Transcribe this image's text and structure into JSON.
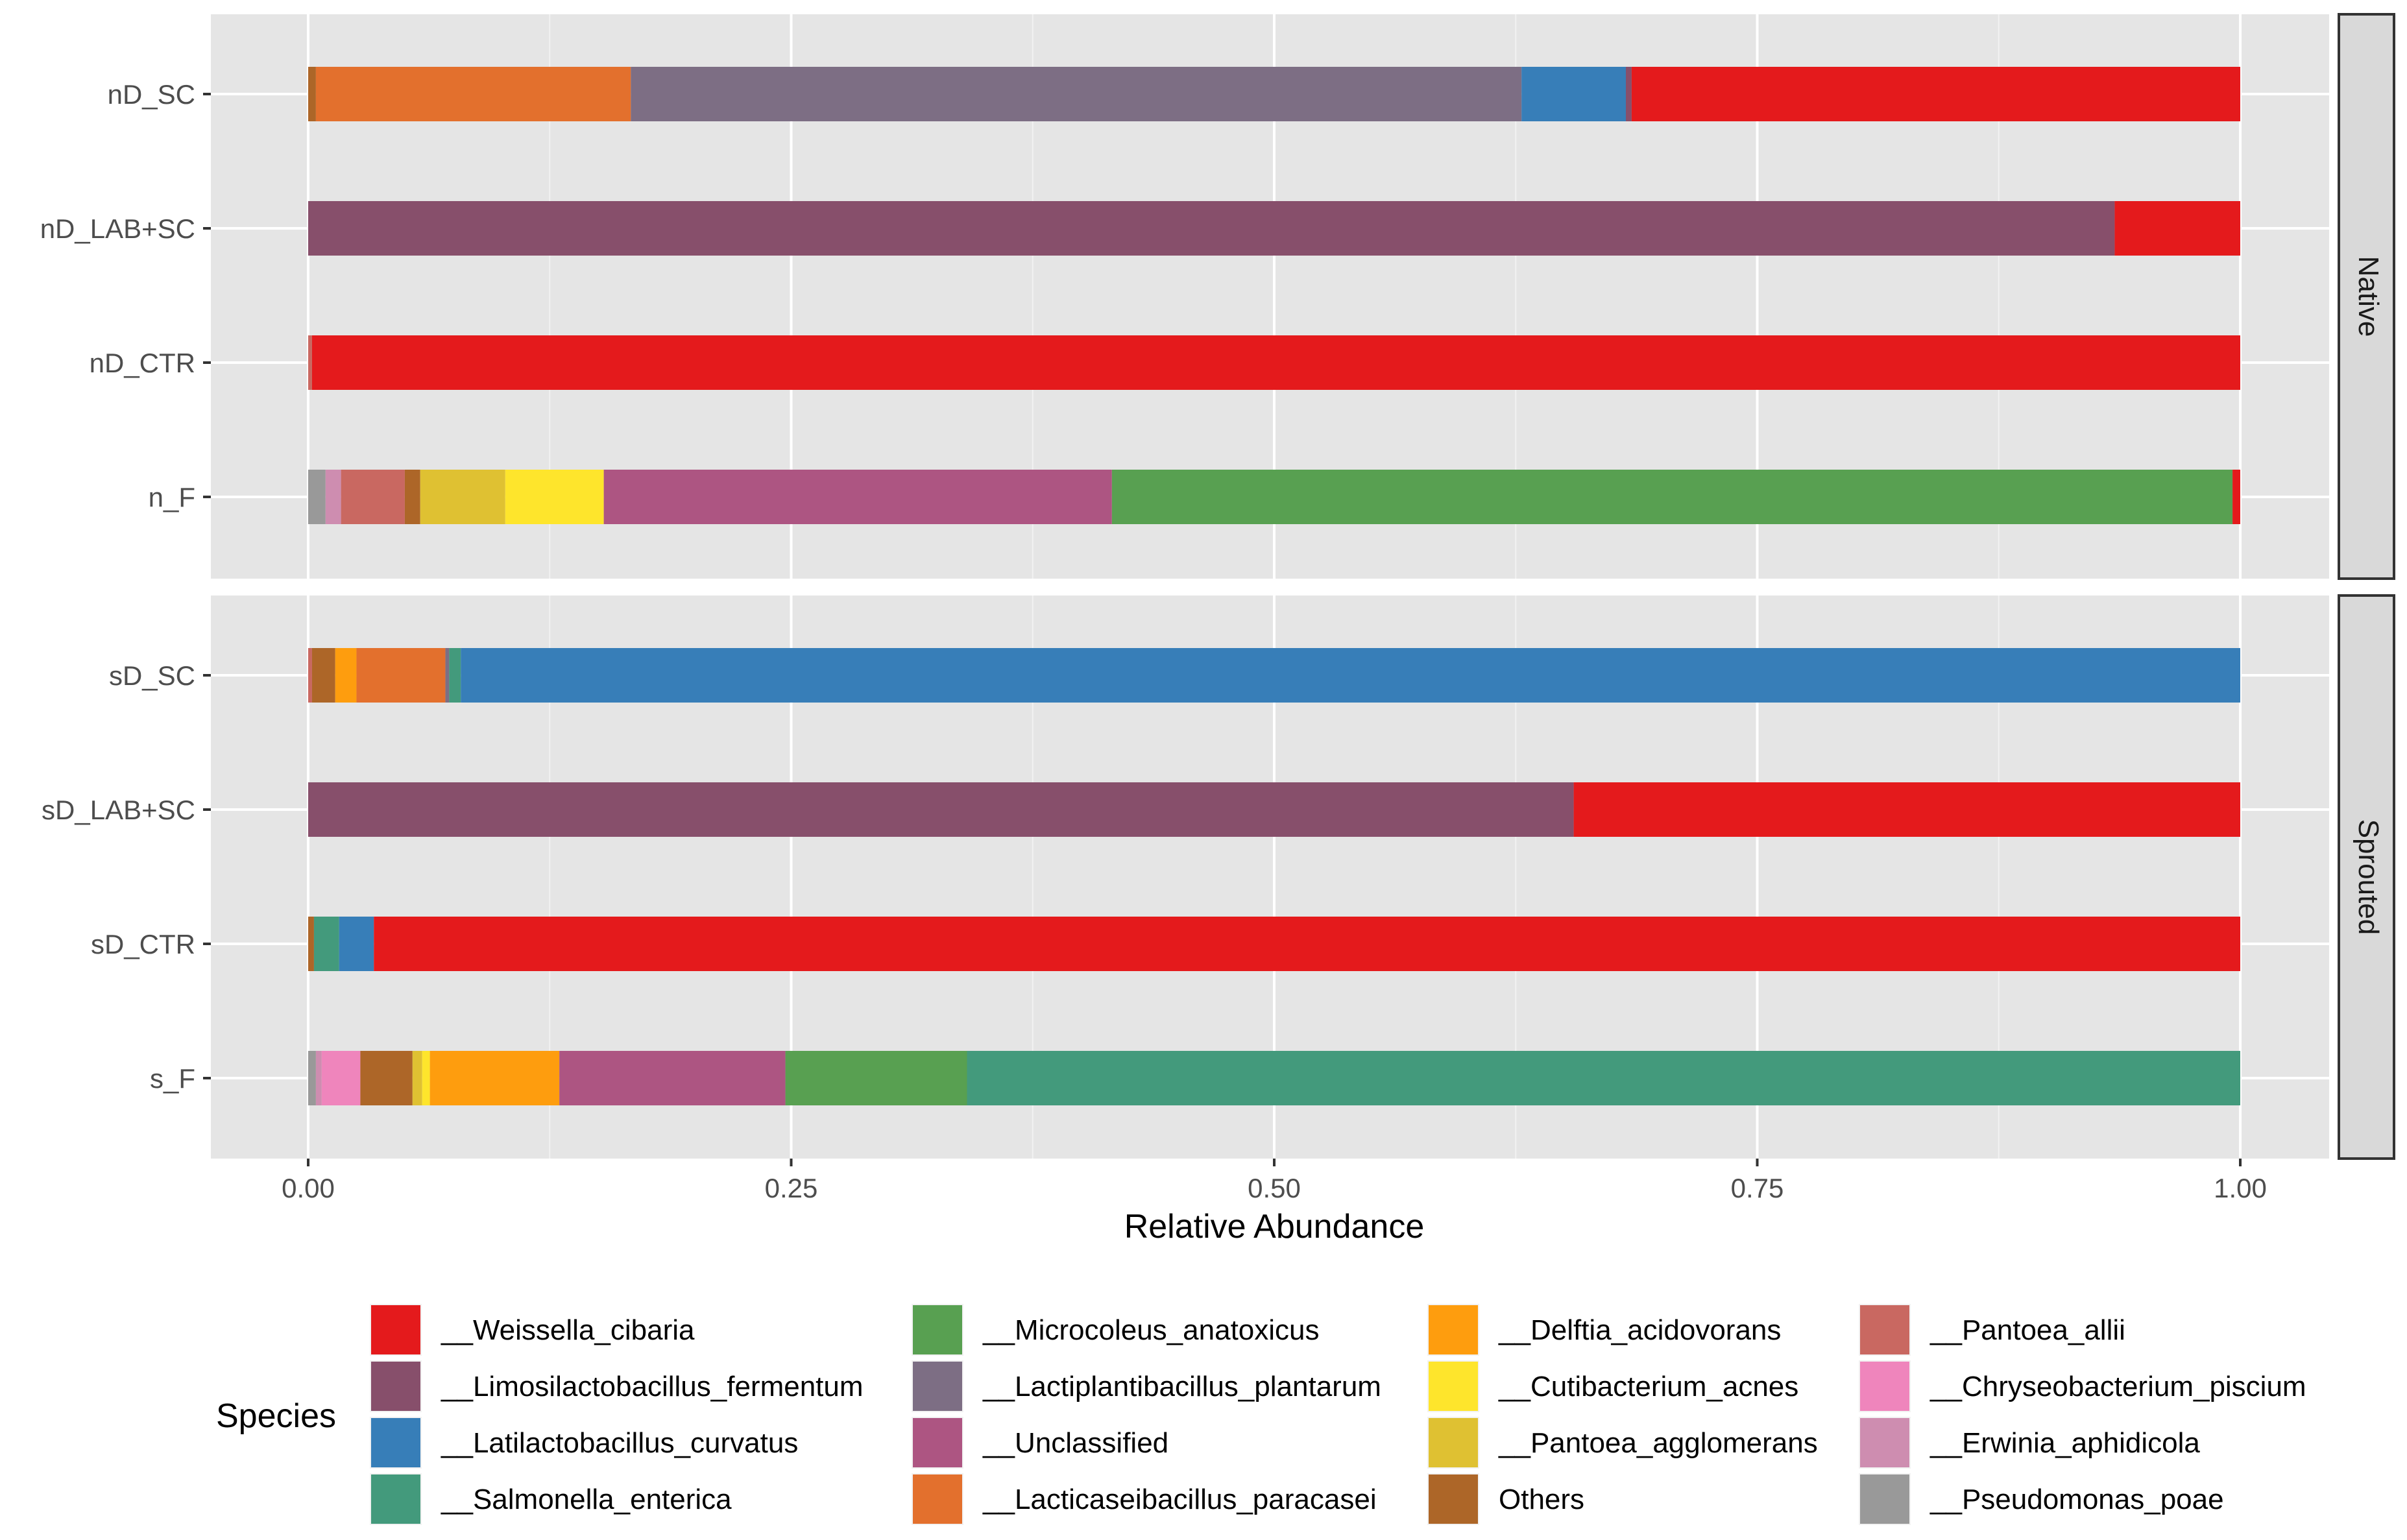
{
  "chart_data": {
    "type": "bar",
    "orientation": "horizontal",
    "stacked": true,
    "xlabel": "Relative Abundance",
    "ylabel": "",
    "xlim": [
      0,
      1
    ],
    "xticks": [
      "0.00",
      "0.25",
      "0.50",
      "0.75",
      "1.00"
    ],
    "xtick_values": [
      0,
      0.25,
      0.5,
      0.75,
      1.0
    ],
    "legend_title": "Species",
    "legend_position": "bottom",
    "species": [
      {
        "name": "__Weissella_cibaria",
        "color": "#e41a1c"
      },
      {
        "name": "__Limosilactobacillus_fermentum",
        "color": "#874f6b"
      },
      {
        "name": "__Latilactobacillus_curvatus",
        "color": "#377eb8"
      },
      {
        "name": "__Salmonella_enterica",
        "color": "#439a7c"
      },
      {
        "name": "__Microcoleus_anatoxicus",
        "color": "#58a051"
      },
      {
        "name": "__Lactiplantibacillus_plantarum",
        "color": "#7d6e84"
      },
      {
        "name": "Unclassified",
        "display": "__Unclassified",
        "color": "#ad5582"
      },
      {
        "name": "__Lacticaseibacillus_paracasei",
        "color": "#e3702d"
      },
      {
        "name": "__Delftia_acidovorans",
        "color": "#fe9d0e"
      },
      {
        "name": "__Cutibacterium_acnes",
        "color": "#fee52c"
      },
      {
        "name": "__Pantoea_agglomerans",
        "color": "#dfc132"
      },
      {
        "name": "Others",
        "display": "Others",
        "color": "#ad6628"
      },
      {
        "name": "__Pantoea_allii",
        "color": "#c96861"
      },
      {
        "name": "__Chryseobacterium_piscium",
        "color": "#ef85bc"
      },
      {
        "name": "__Erwinia_aphidicola",
        "color": "#ce8db0"
      },
      {
        "name": "__Pseudomonas_poae",
        "color": "#999999"
      }
    ],
    "panels": [
      {
        "strip": "Native",
        "categories": [
          "nD_SC",
          "nD_LAB+SC",
          "nD_CTR",
          "n_F"
        ],
        "bars": [
          {
            "category": "nD_SC",
            "segments": [
              {
                "species": "Others",
                "value": 0.004
              },
              {
                "species": "__Lacticaseibacillus_paracasei",
                "value": 0.163
              },
              {
                "species": "__Lactiplantibacillus_plantarum",
                "value": 0.461
              },
              {
                "species": "__Latilactobacillus_curvatus",
                "value": 0.054
              },
              {
                "species": "__Limosilactobacillus_fermentum",
                "value": 0.003
              },
              {
                "species": "__Weissella_cibaria",
                "value": 0.315
              }
            ]
          },
          {
            "category": "nD_LAB+SC",
            "segments": [
              {
                "species": "__Limosilactobacillus_fermentum",
                "value": 0.935
              },
              {
                "species": "__Weissella_cibaria",
                "value": 0.065
              }
            ]
          },
          {
            "category": "nD_CTR",
            "segments": [
              {
                "species": "__Pantoea_allii",
                "value": 0.002
              },
              {
                "species": "__Weissella_cibaria",
                "value": 0.998
              }
            ]
          },
          {
            "category": "n_F",
            "segments": [
              {
                "species": "__Pseudomonas_poae",
                "value": 0.009
              },
              {
                "species": "__Erwinia_aphidicola",
                "value": 0.008
              },
              {
                "species": "__Pantoea_allii",
                "value": 0.033
              },
              {
                "species": "Others",
                "value": 0.008
              },
              {
                "species": "__Pantoea_agglomerans",
                "value": 0.044
              },
              {
                "species": "__Cutibacterium_acnes",
                "value": 0.051
              },
              {
                "species": "Unclassified",
                "value": 0.263
              },
              {
                "species": "__Microcoleus_anatoxicus",
                "value": 0.58
              },
              {
                "species": "__Weissella_cibaria",
                "value": 0.004
              }
            ]
          }
        ]
      },
      {
        "strip": "Sprouted",
        "categories": [
          "sD_SC",
          "sD_LAB+SC",
          "sD_CTR",
          "s_F"
        ],
        "bars": [
          {
            "category": "sD_SC",
            "segments": [
              {
                "species": "__Pantoea_allii",
                "value": 0.002
              },
              {
                "species": "Others",
                "value": 0.012
              },
              {
                "species": "__Delftia_acidovorans",
                "value": 0.011
              },
              {
                "species": "__Lacticaseibacillus_paracasei",
                "value": 0.046
              },
              {
                "species": "__Lactiplantibacillus_plantarum",
                "value": 0.002
              },
              {
                "species": "__Salmonella_enterica",
                "value": 0.006
              },
              {
                "species": "__Latilactobacillus_curvatus",
                "value": 0.921
              }
            ]
          },
          {
            "category": "sD_LAB+SC",
            "segments": [
              {
                "species": "__Limosilactobacillus_fermentum",
                "value": 0.655
              },
              {
                "species": "__Weissella_cibaria",
                "value": 0.345
              }
            ]
          },
          {
            "category": "sD_CTR",
            "segments": [
              {
                "species": "Others",
                "value": 0.003
              },
              {
                "species": "__Salmonella_enterica",
                "value": 0.013
              },
              {
                "species": "__Latilactobacillus_curvatus",
                "value": 0.018
              },
              {
                "species": "__Weissella_cibaria",
                "value": 0.966
              }
            ]
          },
          {
            "category": "s_F",
            "segments": [
              {
                "species": "__Pseudomonas_poae",
                "value": 0.004
              },
              {
                "species": "__Erwinia_aphidicola",
                "value": 0.003
              },
              {
                "species": "__Chryseobacterium_piscium",
                "value": 0.02
              },
              {
                "species": "Others",
                "value": 0.027
              },
              {
                "species": "__Pantoea_agglomerans",
                "value": 0.005
              },
              {
                "species": "__Cutibacterium_acnes",
                "value": 0.004
              },
              {
                "species": "__Delftia_acidovorans",
                "value": 0.067
              },
              {
                "species": "Unclassified",
                "value": 0.117
              },
              {
                "species": "__Microcoleus_anatoxicus",
                "value": 0.094
              },
              {
                "species": "__Salmonella_enterica",
                "value": 0.659
              }
            ]
          }
        ]
      }
    ]
  }
}
